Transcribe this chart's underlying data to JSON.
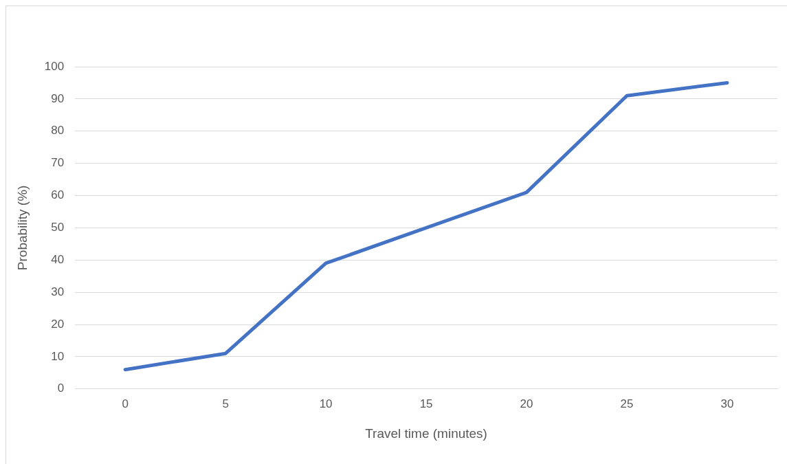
{
  "chart_data": {
    "type": "line",
    "xlabel": "Travel time (minutes)",
    "ylabel": "Probability (%)",
    "categories": [
      "0",
      "5",
      "10",
      "15",
      "20",
      "25",
      "30"
    ],
    "series": [
      {
        "color": "#4472c4",
        "values": [
          6,
          11,
          39,
          50,
          61,
          91,
          95
        ]
      }
    ],
    "ylim": [
      0,
      100
    ],
    "yticks": [
      0,
      10,
      20,
      30,
      40,
      50,
      60,
      70,
      80,
      90,
      100
    ],
    "grid": "y",
    "legend": false,
    "marker": "none",
    "line_style": "solid"
  }
}
